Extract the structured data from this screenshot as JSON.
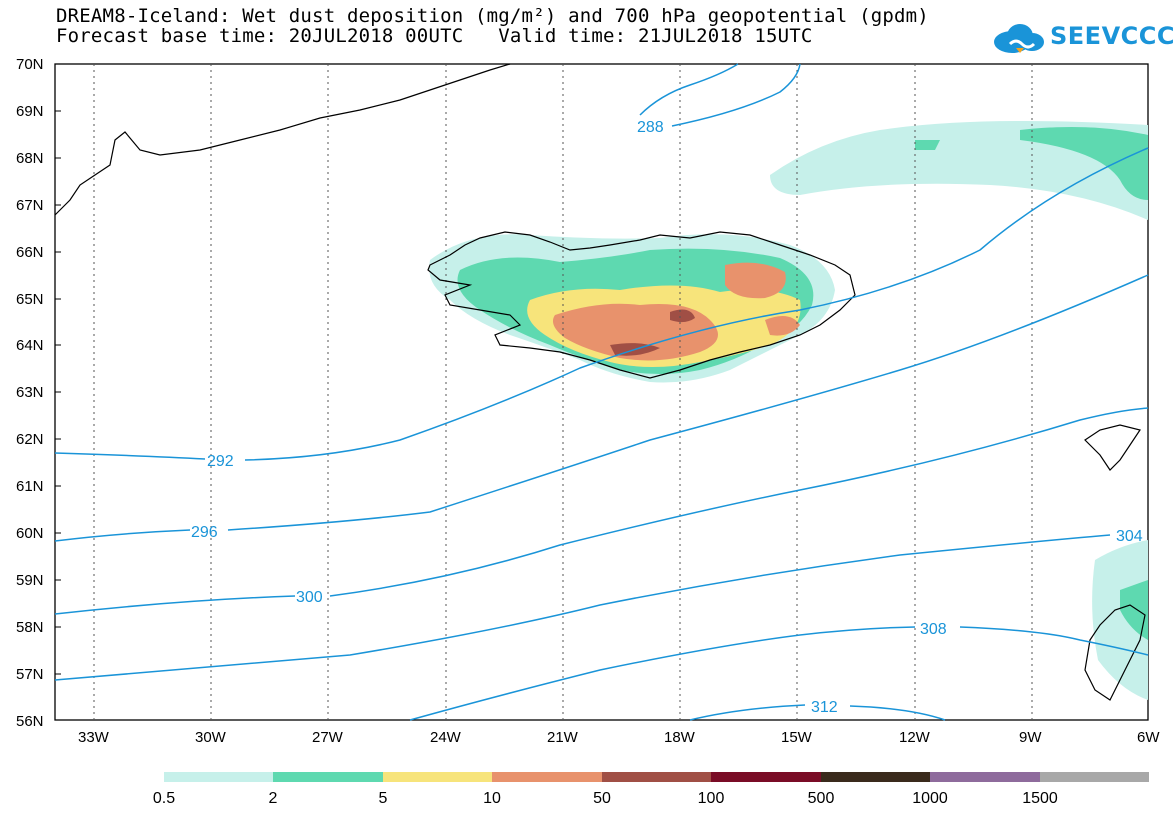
{
  "title": {
    "line1": "DREAM8-Iceland: Wet dust deposition (mg/m²) and 700 hPa geopotential (gpdm)",
    "line2": "Forecast base time: 20JUL2018 00UTC   Valid time: 21JUL2018 15UTC"
  },
  "logo": {
    "text": "SEEVCCC",
    "color": "#1a94d8"
  },
  "axes": {
    "lat_labels": [
      "70N",
      "69N",
      "68N",
      "67N",
      "66N",
      "65N",
      "64N",
      "63N",
      "62N",
      "61N",
      "60N",
      "59N",
      "58N",
      "57N",
      "56N"
    ],
    "lon_labels": [
      "33W",
      "30W",
      "27W",
      "24W",
      "21W",
      "18W",
      "15W",
      "12W",
      "9W",
      "6W"
    ]
  },
  "contours": {
    "color": "#1a94d8",
    "labels": [
      "288",
      "292",
      "296",
      "300",
      "304",
      "308",
      "312"
    ]
  },
  "legend": {
    "colors": [
      "#c6f0ea",
      "#5ed9b0",
      "#f7e47b",
      "#e8926c",
      "#a04f45",
      "#7a0c26",
      "#3a2a1c",
      "#8e6b9c",
      "#a8a8a8"
    ],
    "labels": [
      "0.5",
      "2",
      "5",
      "10",
      "50",
      "100",
      "500",
      "1000",
      "1500"
    ]
  },
  "dust_colors": {
    "c1": "#c6f0ea",
    "c2": "#5ed9b0",
    "c3": "#f7e47b",
    "c4": "#e8926c",
    "c5": "#a04f45"
  }
}
